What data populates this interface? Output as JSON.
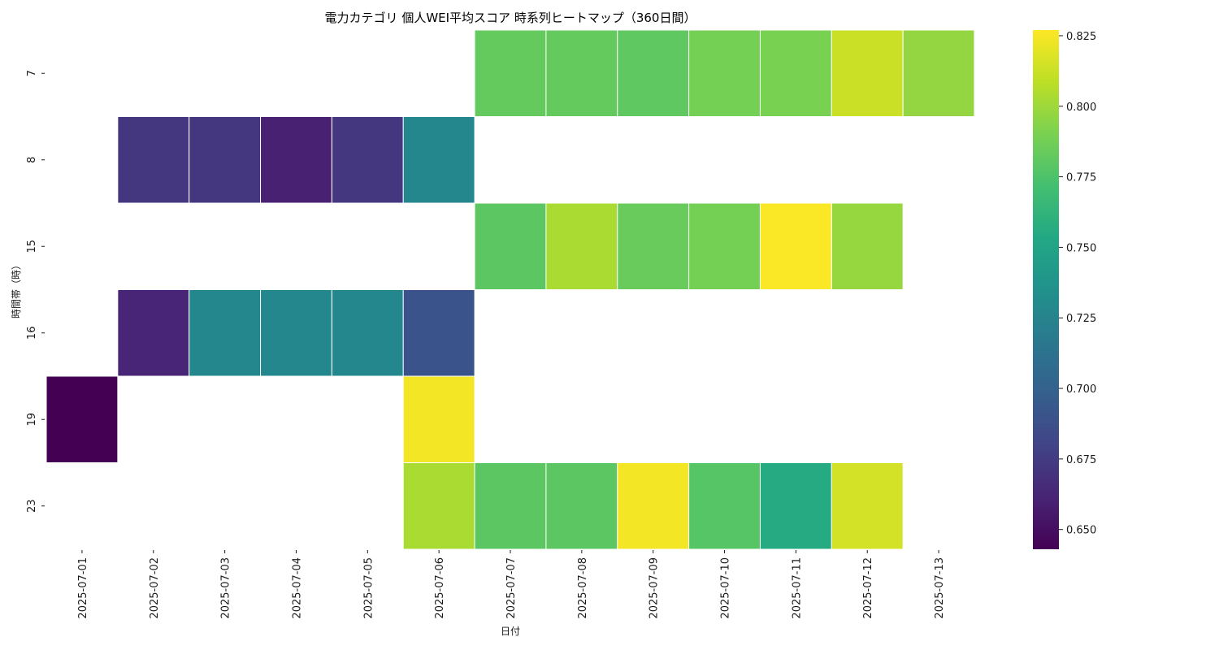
{
  "chart_data": {
    "type": "heatmap",
    "title": "電力カテゴリ 個人WEI平均スコア 時系列ヒートマップ（360日間）",
    "xlabel": "日付",
    "ylabel": "時間帯（時）",
    "x": [
      "2025-07-01",
      "2025-07-02",
      "2025-07-03",
      "2025-07-04",
      "2025-07-05",
      "2025-07-06",
      "2025-07-07",
      "2025-07-08",
      "2025-07-09",
      "2025-07-10",
      "2025-07-11",
      "2025-07-12",
      "2025-07-13"
    ],
    "y": [
      "7",
      "8",
      "15",
      "16",
      "19",
      "23"
    ],
    "values": [
      [
        null,
        null,
        null,
        null,
        null,
        null,
        0.783,
        0.783,
        0.781,
        0.788,
        0.79,
        0.812,
        0.797
      ],
      [
        null,
        0.672,
        0.672,
        0.66,
        0.672,
        0.728,
        null,
        null,
        null,
        null,
        null,
        null,
        null
      ],
      [
        null,
        null,
        null,
        null,
        null,
        null,
        0.78,
        0.803,
        0.784,
        0.788,
        0.826,
        0.798,
        null
      ],
      [
        null,
        0.662,
        0.728,
        0.728,
        0.728,
        0.69,
        null,
        null,
        null,
        null,
        null,
        null,
        null
      ],
      [
        0.643,
        null,
        null,
        null,
        null,
        0.824,
        null,
        null,
        null,
        null,
        null,
        null,
        null
      ],
      [
        null,
        null,
        null,
        null,
        null,
        0.803,
        0.78,
        0.78,
        0.824,
        0.778,
        0.755,
        0.815,
        null
      ]
    ],
    "colorbar": {
      "colormap": "viridis",
      "min": 0.643,
      "max": 0.827,
      "ticks": [
        "0.650",
        "0.675",
        "0.700",
        "0.725",
        "0.750",
        "0.775",
        "0.800",
        "0.825"
      ]
    },
    "grid": false
  }
}
